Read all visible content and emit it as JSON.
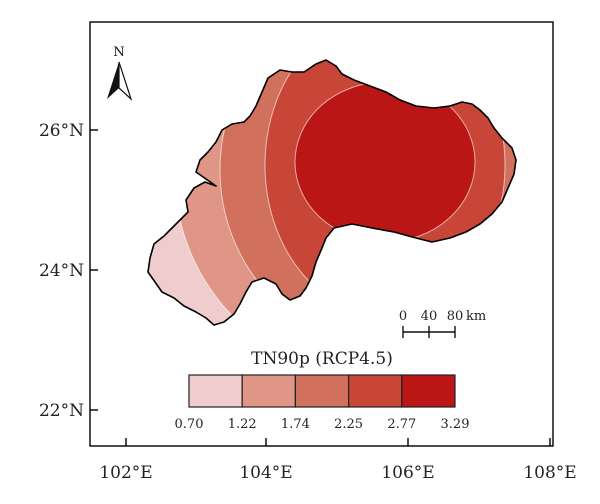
{
  "map": {
    "x_ticks": [
      "102°E",
      "104°E",
      "106°E",
      "108°E"
    ],
    "y_ticks": [
      "26°N",
      "24°N",
      "22°N"
    ],
    "north_label": "N",
    "scale_bar": {
      "labels": [
        "0",
        "40",
        "80"
      ],
      "unit": "km"
    }
  },
  "legend": {
    "title": "TN90p (RCP4.5)",
    "classes": [
      {
        "color": "#efcdcd"
      },
      {
        "color": "#df9686"
      },
      {
        "color": "#d2705e"
      },
      {
        "color": "#c84638"
      },
      {
        "color": "#bb1616"
      }
    ],
    "breaks": [
      "0.70",
      "1.22",
      "1.74",
      "2.25",
      "2.77",
      "3.29"
    ]
  }
}
